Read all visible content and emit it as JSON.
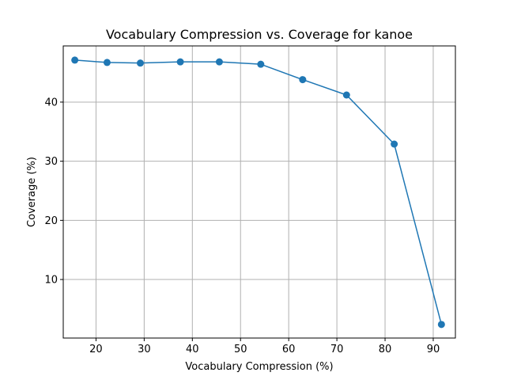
{
  "chart_data": {
    "type": "line",
    "title": "Vocabulary Compression vs. Coverage for kanoe",
    "xlabel": "Vocabulary Compression (%)",
    "ylabel": "Coverage (%)",
    "xlim": [
      13.2,
      94.6
    ],
    "ylim": [
      0.1,
      49.5
    ],
    "xticks": [
      20,
      30,
      40,
      50,
      60,
      70,
      80,
      90
    ],
    "yticks": [
      10,
      20,
      30,
      40
    ],
    "grid": true,
    "series": [
      {
        "color": "#1f77b4",
        "marker": "circle",
        "x": [
          15.6,
          22.3,
          29.2,
          37.5,
          45.6,
          54.2,
          62.9,
          72.0,
          81.9,
          91.7
        ],
        "y": [
          47.1,
          46.7,
          46.6,
          46.8,
          46.8,
          46.4,
          43.8,
          41.2,
          32.9,
          2.4
        ]
      }
    ]
  }
}
